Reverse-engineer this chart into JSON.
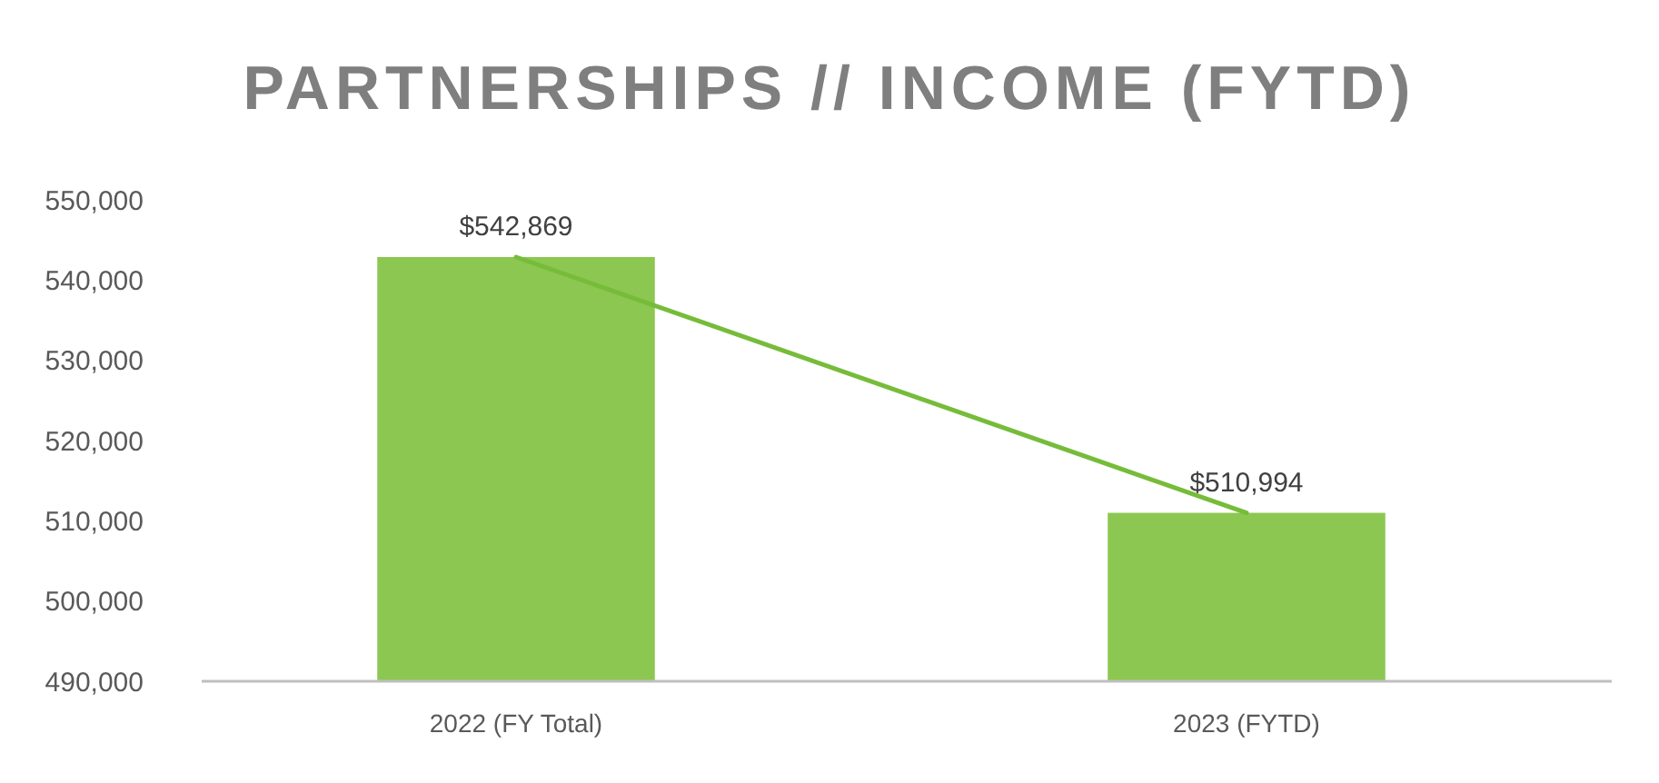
{
  "chart_data": {
    "type": "bar",
    "title": "PARTNERSHIPS // INCOME (FYTD)",
    "categories": [
      "2022 (FY Total)",
      "2023 (FYTD)"
    ],
    "series": [
      {
        "color": "#8cc751",
        "values": [
          542869,
          510994
        ]
      },
      {
        "type": "line",
        "color": "#76bc3a",
        "values": [
          542869,
          510994
        ]
      }
    ],
    "value_labels": [
      "$542,869",
      "$510,994"
    ],
    "ylim": [
      490000,
      550000
    ],
    "yticks": [
      {
        "value": 490000,
        "label": "490,000"
      },
      {
        "value": 500000,
        "label": "500,000"
      },
      {
        "value": 510000,
        "label": "510,000"
      },
      {
        "value": 520000,
        "label": "520,000"
      },
      {
        "value": 530000,
        "label": "530,000"
      },
      {
        "value": 540000,
        "label": "540,000"
      },
      {
        "value": 550000,
        "label": "550,000"
      }
    ],
    "grid": false
  }
}
